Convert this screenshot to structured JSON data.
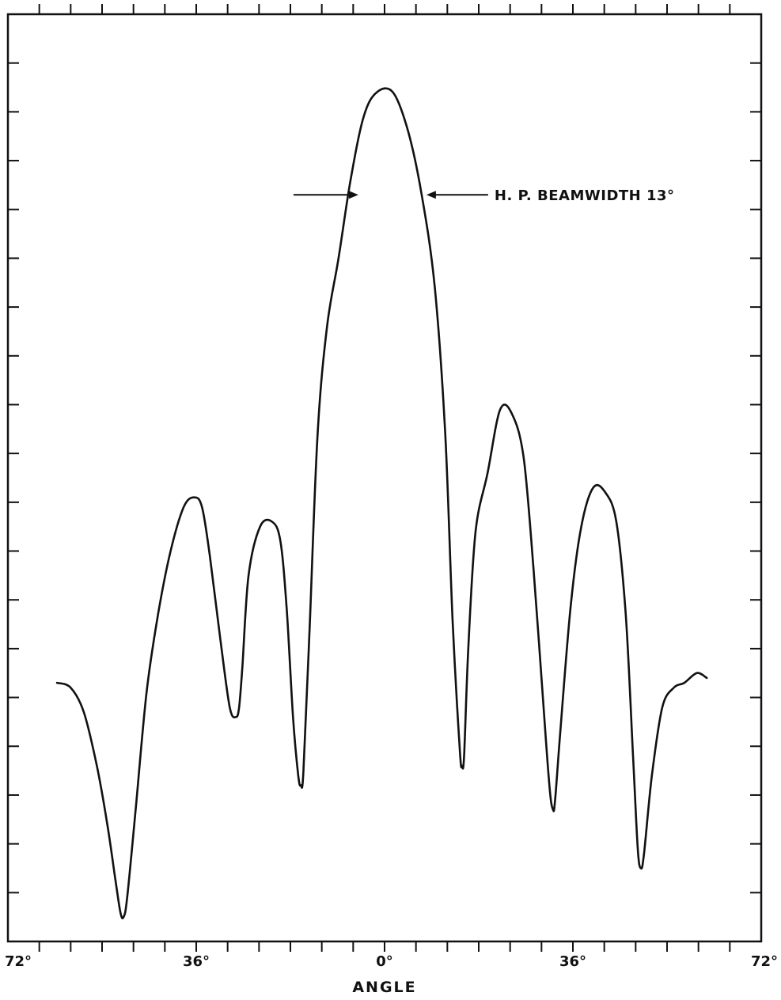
{
  "chart_data": {
    "type": "line",
    "title": "",
    "xlabel": "ANGLE",
    "ylabel": "",
    "xlim": [
      -72,
      72
    ],
    "ylim": [
      0,
      19
    ],
    "x_tick_labels": [
      {
        "x": -72,
        "label": "72°"
      },
      {
        "x": -36,
        "label": "36°"
      },
      {
        "x": 0,
        "label": "0°"
      },
      {
        "x": 36,
        "label": "36°"
      },
      {
        "x": 72,
        "label": "72°"
      }
    ],
    "x_minor_tick_step": 6,
    "y_tick_count": 18,
    "grid": false,
    "annotation": {
      "text": "H. P. BEAMWIDTH 13°",
      "left_x": -5,
      "right_x": 8,
      "y": 15.3
    },
    "series": [
      {
        "color": "#111111",
        "x": [
          -62.6,
          -60.0,
          -57.5,
          -55.0,
          -53.0,
          -51.5,
          -50.5,
          -49.9,
          -49.2,
          -47.5,
          -45.5,
          -43.3,
          -40.9,
          -38.4,
          -36.4,
          -34.9,
          -33.4,
          -31.4,
          -29.6,
          -28.4,
          -27.8,
          -27.2,
          -26.0,
          -23.8,
          -21.5,
          -19.9,
          -18.7,
          -17.5,
          -16.5,
          -16.0,
          -15.5,
          -14.3,
          -12.8,
          -11.0,
          -8.8,
          -6.5,
          -4.0,
          -1.5,
          1.6,
          4.5,
          7.1,
          9.6,
          11.6,
          13.0,
          14.4,
          14.8,
          15.2,
          16.0,
          17.4,
          19.7,
          22.1,
          24.4,
          26.6,
          28.5,
          30.0,
          31.5,
          32.2,
          32.6,
          33.6,
          35.6,
          37.6,
          39.9,
          42.2,
          44.3,
          46.1,
          47.5,
          48.4,
          49.0,
          49.6,
          51.1,
          53.1,
          55.3,
          57.3,
          59.7,
          61.6
        ],
        "y": [
          5.3,
          5.2,
          4.7,
          3.6,
          2.4,
          1.3,
          0.6,
          0.5,
          0.9,
          2.8,
          5.1,
          6.7,
          8.0,
          8.9,
          9.1,
          8.9,
          7.9,
          6.2,
          4.8,
          4.6,
          4.8,
          5.6,
          7.5,
          8.5,
          8.6,
          8.2,
          6.8,
          4.6,
          3.4,
          3.2,
          3.5,
          6.5,
          10.4,
          12.6,
          14.0,
          15.6,
          16.9,
          17.4,
          17.4,
          16.6,
          15.3,
          13.4,
          10.4,
          6.6,
          3.9,
          3.6,
          3.8,
          6.0,
          8.4,
          9.6,
          10.9,
          10.8,
          9.9,
          7.6,
          5.4,
          3.2,
          2.7,
          2.9,
          4.3,
          6.9,
          8.5,
          9.3,
          9.2,
          8.6,
          6.7,
          3.8,
          1.9,
          1.5,
          1.8,
          3.4,
          4.8,
          5.2,
          5.3,
          5.5,
          5.4
        ]
      }
    ]
  }
}
